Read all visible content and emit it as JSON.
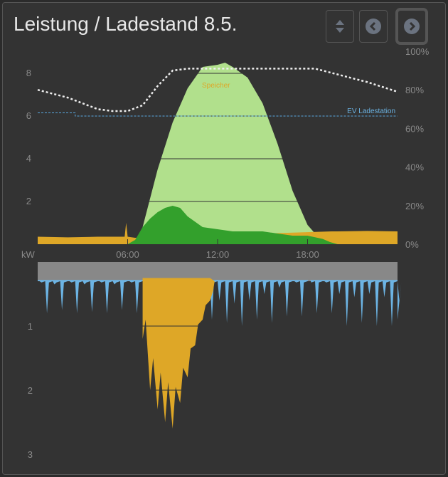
{
  "header": {
    "title": "Leistung / Ladestand 8.5."
  },
  "buttons": {
    "toggle": "sort-icon",
    "prev": "chevron-left-icon",
    "next": "chevron-right-icon"
  },
  "colors": {
    "pv": "#b1e08c",
    "self": "#33a02c",
    "grid": "#dea727",
    "consumption": "#6cb4e4",
    "base": "#888888",
    "soc": "#eeeeee",
    "ev": "#5aa8e0"
  },
  "chart_data": [
    {
      "type": "area",
      "title": "Leistung / Ladestand 8.5.",
      "x_ticks": [
        "06:00",
        "12:00",
        "18:00"
      ],
      "y_ticks": [
        "2",
        "4",
        "6",
        "8"
      ],
      "y2_ticks": [
        "0%",
        "20%",
        "40%",
        "60%",
        "80%",
        "100%"
      ],
      "ylim": [
        0,
        8.5
      ],
      "y2lim": [
        0,
        100
      ],
      "xlim": [
        0,
        24
      ],
      "annotations": [
        "Speicher",
        "EV Ladestation"
      ],
      "pv_hours": [
        0,
        6,
        6.5,
        7,
        8,
        9,
        10,
        11,
        12,
        12.5,
        13,
        14,
        15,
        16,
        17,
        18,
        19,
        19.5,
        24
      ],
      "pv_kw": [
        0,
        0,
        0.1,
        0.8,
        3.5,
        5.7,
        7.3,
        8.3,
        8.4,
        8.5,
        8.3,
        7.8,
        6.6,
        4.7,
        2.5,
        0.9,
        0.1,
        0,
        0
      ],
      "self_hours": [
        0,
        6,
        6.5,
        7,
        7.5,
        8,
        8.5,
        9,
        9.5,
        10,
        11,
        12,
        13,
        14,
        15,
        16,
        17,
        18,
        19,
        19.5,
        20,
        24
      ],
      "self_kw": [
        0,
        0,
        0.2,
        0.8,
        1.2,
        1.5,
        1.7,
        1.8,
        1.7,
        1.3,
        0.8,
        0.7,
        0.6,
        0.6,
        0.6,
        0.5,
        0.4,
        0.4,
        0.25,
        0.1,
        0,
        0
      ],
      "grid_hours": [
        0,
        2,
        4,
        5.8,
        5.9,
        6,
        6.5,
        19.6,
        20,
        22,
        24
      ],
      "grid_kw": [
        0.35,
        0.32,
        0.35,
        0.35,
        1.0,
        0.35,
        0.3,
        0.6,
        0.6,
        0.62,
        0.6
      ],
      "soc_hours": [
        0,
        2,
        4,
        5,
        6,
        7,
        8,
        9,
        10,
        12,
        14,
        16,
        18.5,
        20,
        22,
        24
      ],
      "soc_pct": [
        80,
        76,
        70,
        69,
        69,
        72,
        82,
        90,
        91,
        91,
        91,
        91,
        91,
        88,
        84,
        79
      ],
      "ev_hours": [
        0,
        2.5,
        2.5,
        24
      ],
      "ev_kw": [
        6.15,
        6.15,
        6,
        6
      ]
    },
    {
      "type": "area",
      "ylabel": "kW",
      "y_ticks": [
        "1",
        "2",
        "3"
      ],
      "ylim": [
        0,
        3
      ],
      "xlim": [
        0,
        24
      ],
      "consumption_kw_halfhourly": [
        0.3,
        0.8,
        0.35,
        0.75,
        0.3,
        0.8,
        0.35,
        0.78,
        0.3,
        0.8,
        0.35,
        0.75,
        0.3,
        0.8,
        0.3,
        0.4,
        0.3,
        0.4,
        0.3,
        0.4,
        0.3,
        0.4,
        0.55,
        0.9,
        0.6,
        0.95,
        0.65,
        1.0,
        0.6,
        0.9,
        0.5,
        0.95,
        0.4,
        0.85,
        0.3,
        0.85,
        0.25,
        0.8,
        0.3,
        0.8,
        0.5,
        1.0,
        0.55,
        0.95,
        0.5,
        1.0,
        0.55,
        1.0,
        0.6
      ],
      "battery_hours": [
        7,
        7.5,
        8,
        8.5,
        9,
        9.5,
        10,
        10.5,
        11,
        11.5
      ],
      "battery_kw": [
        1.2,
        2.0,
        2.3,
        2.5,
        2.6,
        2.2,
        1.8,
        1.3,
        0.9,
        0.6
      ]
    }
  ]
}
